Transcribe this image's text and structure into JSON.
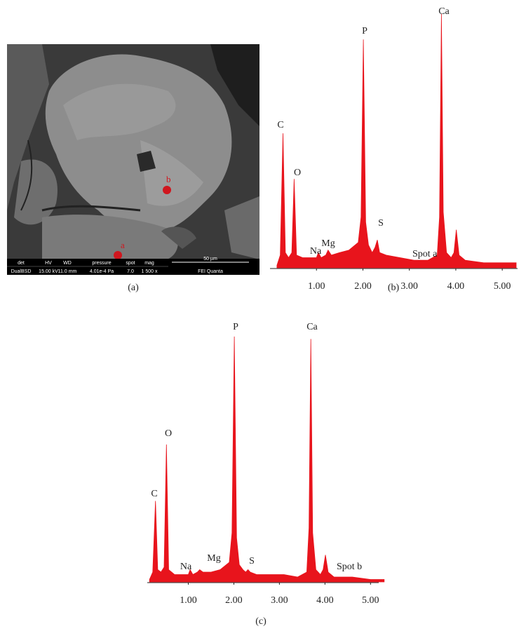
{
  "figure": {
    "captions": [
      "(a)",
      "(b)",
      "(c)"
    ],
    "sem_image": {
      "spots": [
        "a",
        "b"
      ],
      "info_bar": {
        "headers": [
          "det",
          "HV",
          "WD",
          "pressure",
          "spot",
          "mag"
        ],
        "values": [
          "DualBSD",
          "15.00 kV",
          "11.0 mm",
          "4.01e-4 Pa",
          "7.0",
          "1 500 x"
        ],
        "scale_bar": "50 µm",
        "instrument": "FEI Quanta"
      }
    }
  },
  "chart_data": [
    {
      "type": "area",
      "color": "#e8141c",
      "x": [
        0.15,
        0.22,
        0.28,
        0.33,
        0.4,
        0.47,
        0.52,
        0.57,
        0.7,
        0.85,
        1.0,
        1.04,
        1.1,
        1.2,
        1.25,
        1.32,
        1.5,
        1.7,
        1.9,
        1.96,
        2.01,
        2.06,
        2.12,
        2.2,
        2.26,
        2.31,
        2.36,
        2.5,
        2.8,
        3.1,
        3.4,
        3.6,
        3.65,
        3.69,
        3.73,
        3.8,
        3.9,
        3.96,
        4.01,
        4.07,
        4.2,
        4.6,
        5.0,
        5.3
      ],
      "values": [
        1,
        5,
        53,
        6,
        4,
        6,
        35,
        5,
        4,
        4,
        4,
        6,
        4,
        5,
        7,
        5,
        6,
        7,
        10,
        20,
        90,
        18,
        9,
        6,
        8,
        11,
        6,
        5,
        4,
        3,
        3,
        5,
        20,
        100,
        22,
        6,
        4,
        6,
        15,
        5,
        3,
        2,
        2,
        2
      ],
      "xlim": [
        0,
        5.33
      ],
      "ylim": [
        0,
        100
      ],
      "xticks": [
        {
          "value": 1,
          "label": "1.00"
        },
        {
          "value": 2,
          "label": "2.00"
        },
        {
          "value": 3,
          "label": "3.00"
        },
        {
          "value": 4,
          "label": "4.00"
        },
        {
          "value": 5,
          "label": "5.00"
        }
      ],
      "annotations": [
        "C",
        "O",
        "Na",
        "Mg",
        "P",
        "S",
        "Ca",
        "Spot a"
      ]
    },
    {
      "type": "area",
      "color": "#e8141c",
      "x": [
        0.15,
        0.22,
        0.28,
        0.33,
        0.4,
        0.47,
        0.52,
        0.57,
        0.7,
        0.85,
        1.0,
        1.04,
        1.1,
        1.2,
        1.25,
        1.32,
        1.5,
        1.7,
        1.9,
        1.96,
        2.01,
        2.06,
        2.12,
        2.2,
        2.26,
        2.31,
        2.36,
        2.5,
        2.8,
        3.1,
        3.4,
        3.6,
        3.65,
        3.69,
        3.73,
        3.8,
        3.9,
        3.96,
        4.01,
        4.07,
        4.2,
        4.6,
        5.0,
        5.3
      ],
      "values": [
        1,
        4,
        33,
        5,
        4,
        6,
        56,
        5,
        3,
        3,
        3,
        5,
        3,
        4,
        5,
        4,
        4,
        5,
        8,
        20,
        100,
        18,
        7,
        5,
        4,
        5,
        4,
        3,
        3,
        3,
        2,
        4,
        22,
        99,
        20,
        5,
        3,
        5,
        11,
        4,
        2,
        2,
        1,
        1
      ],
      "xlim": [
        0.1,
        5.18
      ],
      "ylim": [
        0,
        100
      ],
      "xticks": [
        {
          "value": 1,
          "label": "1.00"
        },
        {
          "value": 2,
          "label": "2.00"
        },
        {
          "value": 3,
          "label": "3.00"
        },
        {
          "value": 4,
          "label": "4.00"
        },
        {
          "value": 5,
          "label": "5.00"
        }
      ],
      "annotations": [
        "C",
        "O",
        "Na",
        "Mg",
        "P",
        "S",
        "Ca",
        "Spot b"
      ]
    }
  ]
}
